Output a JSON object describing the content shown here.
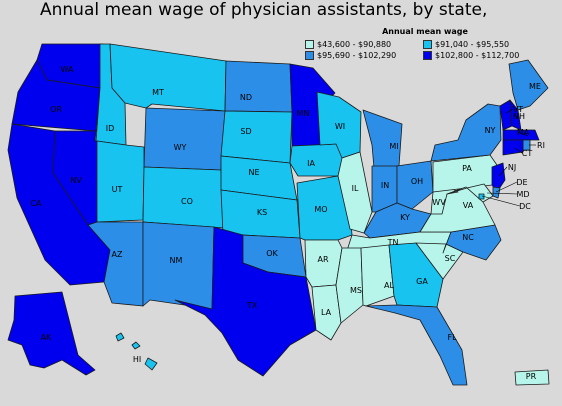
{
  "title": "Annual mean wage of physician assistants, by state,",
  "legend": {
    "title": "Annual mean wage",
    "items": [
      {
        "range": "$43,600 - $90,880",
        "color": "#b7f5ea"
      },
      {
        "range": "$91,040 - $95,550",
        "color": "#19c3f0"
      },
      {
        "range": "$95,690 - $102,290",
        "color": "#2d8ee8"
      },
      {
        "range": "$102,800 - $112,700",
        "color": "#0000ee"
      }
    ]
  },
  "states": [
    {
      "code": "WA",
      "tier": 3
    },
    {
      "code": "OR",
      "tier": 3
    },
    {
      "code": "CA",
      "tier": 3
    },
    {
      "code": "NV",
      "tier": 3
    },
    {
      "code": "ID",
      "tier": 1
    },
    {
      "code": "MT",
      "tier": 1
    },
    {
      "code": "WY",
      "tier": 2
    },
    {
      "code": "UT",
      "tier": 1
    },
    {
      "code": "CO",
      "tier": 1
    },
    {
      "code": "AZ",
      "tier": 2
    },
    {
      "code": "NM",
      "tier": 2
    },
    {
      "code": "ND",
      "tier": 2
    },
    {
      "code": "SD",
      "tier": 1
    },
    {
      "code": "NE",
      "tier": 1
    },
    {
      "code": "KS",
      "tier": 1
    },
    {
      "code": "OK",
      "tier": 2
    },
    {
      "code": "TX",
      "tier": 3
    },
    {
      "code": "MN",
      "tier": 3
    },
    {
      "code": "IA",
      "tier": 1
    },
    {
      "code": "MO",
      "tier": 1
    },
    {
      "code": "AR",
      "tier": 0
    },
    {
      "code": "LA",
      "tier": 0
    },
    {
      "code": "WI",
      "tier": 1
    },
    {
      "code": "IL",
      "tier": 0
    },
    {
      "code": "MI",
      "tier": 2
    },
    {
      "code": "IN",
      "tier": 2
    },
    {
      "code": "OH",
      "tier": 2
    },
    {
      "code": "KY",
      "tier": 2
    },
    {
      "code": "TN",
      "tier": 0
    },
    {
      "code": "MS",
      "tier": 0
    },
    {
      "code": "AL",
      "tier": 0
    },
    {
      "code": "GA",
      "tier": 1
    },
    {
      "code": "FL",
      "tier": 2
    },
    {
      "code": "SC",
      "tier": 0
    },
    {
      "code": "NC",
      "tier": 2
    },
    {
      "code": "VA",
      "tier": 0
    },
    {
      "code": "WV",
      "tier": 0
    },
    {
      "code": "PA",
      "tier": 0
    },
    {
      "code": "NY",
      "tier": 2
    },
    {
      "code": "ME",
      "tier": 2
    },
    {
      "code": "VT",
      "tier": 3
    },
    {
      "code": "NH",
      "tier": 3
    },
    {
      "code": "MA",
      "tier": 3
    },
    {
      "code": "RI",
      "tier": 2
    },
    {
      "code": "CT",
      "tier": 3
    },
    {
      "code": "NJ",
      "tier": 3
    },
    {
      "code": "DE",
      "tier": 2
    },
    {
      "code": "MD",
      "tier": 0
    },
    {
      "code": "DC",
      "tier": 1
    },
    {
      "code": "AK",
      "tier": 3
    },
    {
      "code": "HI",
      "tier": 1
    },
    {
      "code": "PR",
      "tier": 0
    }
  ]
}
